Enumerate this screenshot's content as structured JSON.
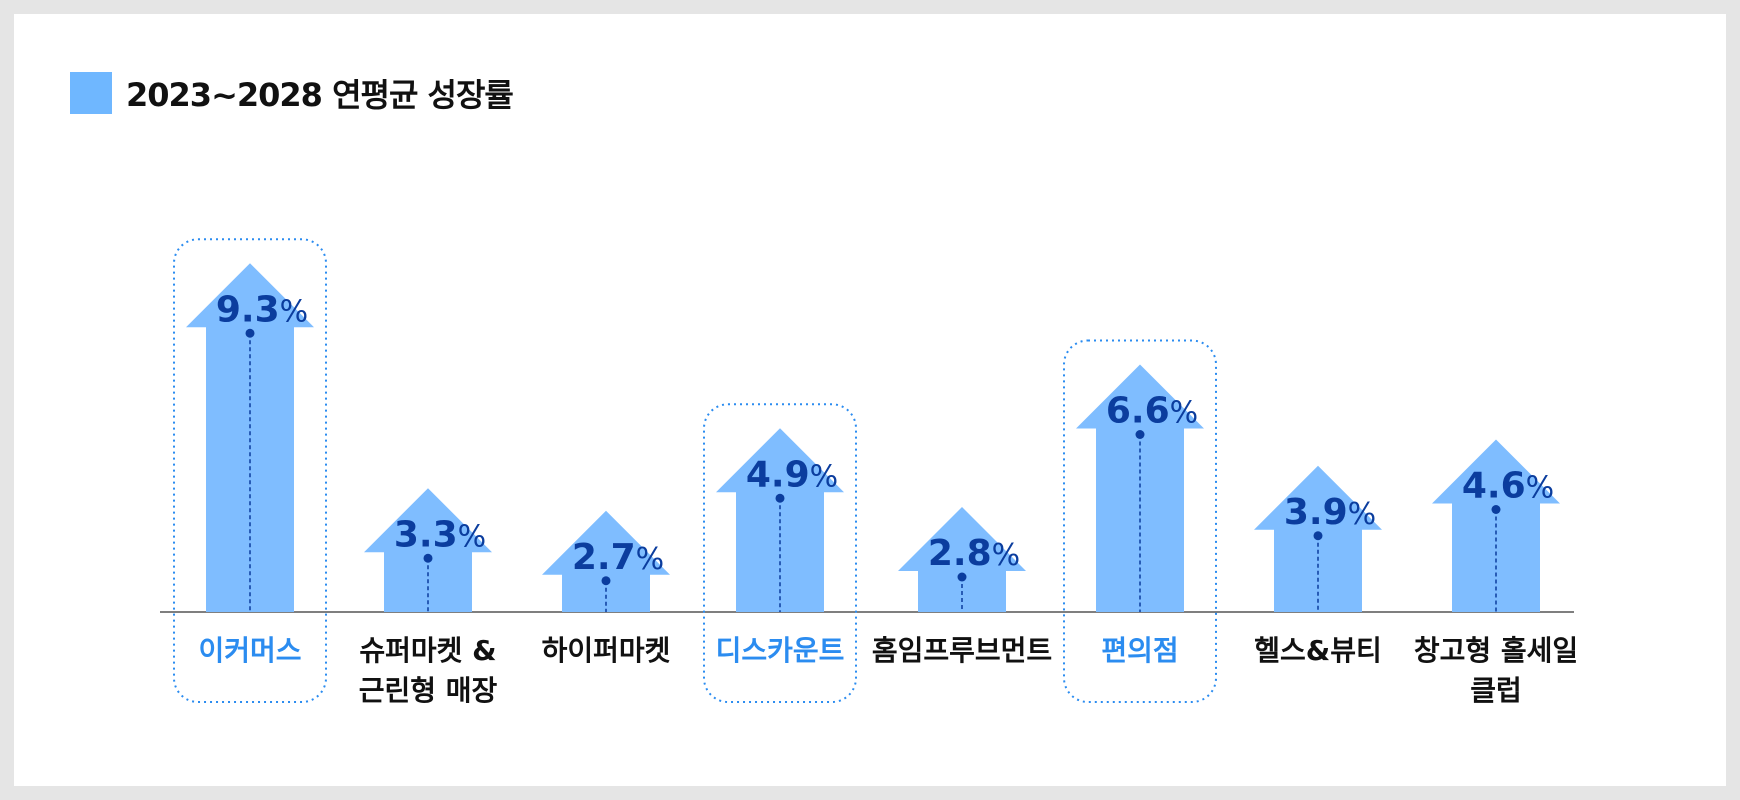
{
  "legend": {
    "label": "2023~2028 연평균 성장률",
    "color": "#6fb7ff"
  },
  "colors": {
    "arrow": "#7fbdff",
    "value": "#0b3d9e",
    "highlight": "#2b8cf0",
    "normal_label": "#111111",
    "baseline": "#555555"
  },
  "chart_data": {
    "type": "bar",
    "title": "",
    "xlabel": "",
    "ylabel": "",
    "unit": "%",
    "ylim": [
      0,
      10
    ],
    "grid": false,
    "legend_position": "top-left",
    "categories": [
      [
        "이커머스"
      ],
      [
        "슈퍼마켓 &",
        "근린형 매장"
      ],
      [
        "하이퍼마켓"
      ],
      [
        "디스카운트"
      ],
      [
        "홈임프루브먼트"
      ],
      [
        "편의점"
      ],
      [
        "헬스&뷰티"
      ],
      [
        "창고형 홀세일",
        "클럽"
      ]
    ],
    "values": [
      9.3,
      3.3,
      2.7,
      4.9,
      2.8,
      6.6,
      3.9,
      4.6
    ],
    "highlighted": [
      true,
      false,
      false,
      true,
      false,
      true,
      false,
      false
    ]
  }
}
